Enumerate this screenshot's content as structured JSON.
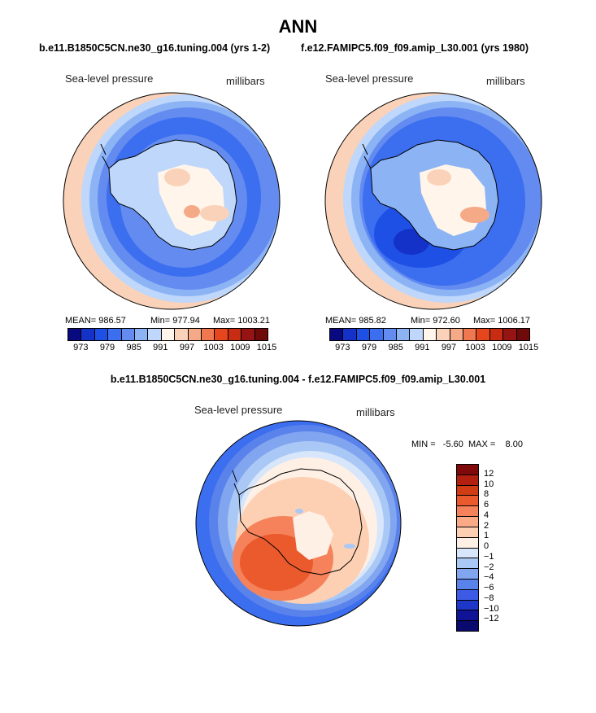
{
  "title": "ANN",
  "top_heading": {
    "left": "b.e11.B1850C5CN.ne30_g16.tuning.004 (yrs 1-2)",
    "right": "f.e12.FAMIPC5.f09_f09.amip_L30.001 (yrs 1980)"
  },
  "diff_heading": "b.e11.B1850C5CN.ne30_g16.tuning.004 - f.e12.FAMIPC5.f09_f09.amip_L30.001",
  "panel_left": {
    "variable": "Sea-level pressure",
    "units": "millibars",
    "stats": {
      "mean": "MEAN= 986.57",
      "min": "Min= 977.94",
      "max": "Max= 1003.21"
    }
  },
  "panel_right": {
    "variable": "Sea-level pressure",
    "units": "millibars",
    "stats": {
      "mean": "MEAN= 985.82",
      "min": "Min= 972.60",
      "max": "Max= 1006.17"
    }
  },
  "panel_diff": {
    "variable": "Sea-level pressure",
    "units": "millibars",
    "minmax": "MIN =   -5.60  MAX =    8.00"
  },
  "colorbar_abs": {
    "ticks": [
      "973",
      "979",
      "985",
      "991",
      "997",
      "1003",
      "1009",
      "1015"
    ],
    "colors": [
      "#0a0a80",
      "#1432c8",
      "#1e50e6",
      "#3c6ef0",
      "#648cf0",
      "#8cb4f5",
      "#bed7fa",
      "#fff5eb",
      "#fad2b9",
      "#f5aa87",
      "#f07850",
      "#e6461e",
      "#c82d14",
      "#961414",
      "#6e0a0a"
    ]
  },
  "colorbar_diff": {
    "ticks": [
      "12",
      "10",
      "8",
      "6",
      "4",
      "2",
      "1",
      "0",
      "-1",
      "-2",
      "-4",
      "-6",
      "-8",
      "-10",
      "-12"
    ],
    "colors": [
      "#800a0a",
      "#b4200f",
      "#d23c14",
      "#eb5a2d",
      "#f5825a",
      "#faaa87",
      "#fdd0b4",
      "#fff0e6",
      "#d7e6fa",
      "#aac8f5",
      "#82a5f0",
      "#5a82eb",
      "#3c5ae6",
      "#1e37c8",
      "#0f1496",
      "#0a0a6e"
    ]
  }
}
